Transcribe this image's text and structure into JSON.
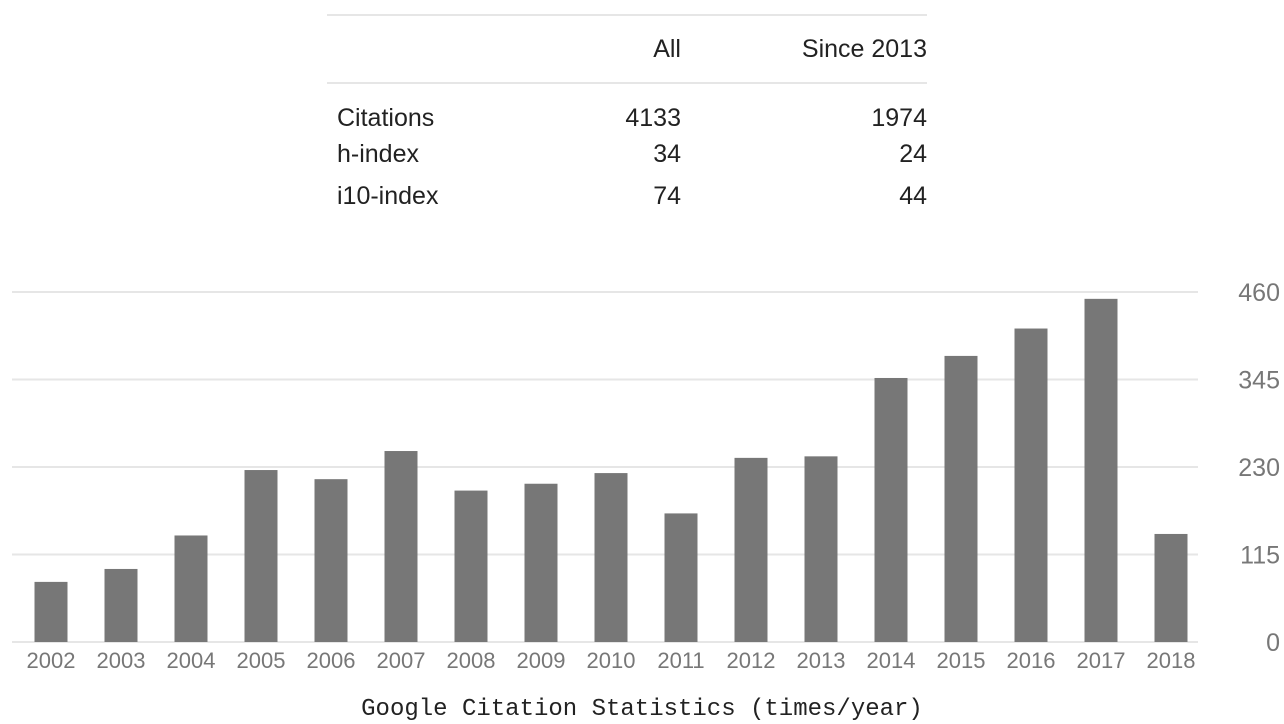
{
  "table": {
    "headers": [
      "",
      "All",
      "Since 2013"
    ],
    "rows": [
      {
        "label": "Citations",
        "all": "4133",
        "since": "1974"
      },
      {
        "label": "h-index",
        "all": "34",
        "since": "24"
      },
      {
        "label": "i10-index",
        "all": "74",
        "since": "44"
      }
    ]
  },
  "chart_data": {
    "type": "bar",
    "title": "Google Citation Statistics (times/year)",
    "categories": [
      "2002",
      "2003",
      "2004",
      "2005",
      "2006",
      "2007",
      "2008",
      "2009",
      "2010",
      "2011",
      "2012",
      "2013",
      "2014",
      "2015",
      "2016",
      "2017",
      "2018"
    ],
    "values": [
      79,
      96,
      140,
      226,
      214,
      251,
      199,
      208,
      222,
      169,
      242,
      244,
      347,
      376,
      412,
      451,
      142
    ],
    "ylim": [
      0,
      460
    ],
    "yticks": [
      "0",
      "115",
      "230",
      "345",
      "460"
    ],
    "y_axis_side": "right",
    "grid": true,
    "colors": {
      "bar": "#777777",
      "grid": "#e6e6e6",
      "tick_text": "#777777"
    }
  }
}
